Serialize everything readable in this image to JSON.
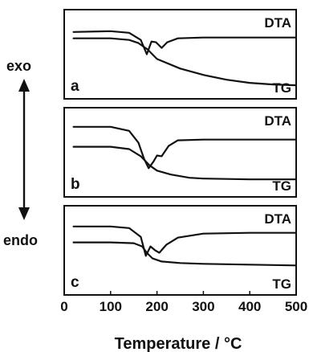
{
  "chart_data": {
    "type": "line",
    "x_unit_label": "Temperature / °C",
    "xlim": [
      0,
      500
    ],
    "x_ticks": [
      0,
      100,
      200,
      300,
      400,
      500
    ],
    "x_tick_labels": [
      "0",
      "100",
      "200",
      "300",
      "400",
      "500"
    ],
    "y_axis_left": {
      "top_label": "exo",
      "bottom_label": "endo"
    },
    "grid": false,
    "ylim": [
      0,
      1
    ],
    "panels": [
      {
        "label": "a",
        "series": [
          {
            "name": "DTA",
            "label_position": "top-right",
            "points": [
              [
                20,
                0.78
              ],
              [
                100,
                0.79
              ],
              [
                140,
                0.77
              ],
              [
                165,
                0.68
              ],
              [
                178,
                0.5
              ],
              [
                188,
                0.66
              ],
              [
                198,
                0.65
              ],
              [
                210,
                0.58
              ],
              [
                222,
                0.65
              ],
              [
                245,
                0.7
              ],
              [
                300,
                0.71
              ],
              [
                400,
                0.71
              ],
              [
                500,
                0.71
              ]
            ]
          },
          {
            "name": "TG",
            "label_position": "bottom-right",
            "points": [
              [
                20,
                0.7
              ],
              [
                100,
                0.7
              ],
              [
                140,
                0.68
              ],
              [
                160,
                0.64
              ],
              [
                180,
                0.56
              ],
              [
                200,
                0.44
              ],
              [
                250,
                0.32
              ],
              [
                300,
                0.24
              ],
              [
                350,
                0.18
              ],
              [
                400,
                0.14
              ],
              [
                450,
                0.12
              ],
              [
                500,
                0.11
              ]
            ]
          }
        ]
      },
      {
        "label": "b",
        "series": [
          {
            "name": "DTA",
            "label_position": "top-right",
            "points": [
              [
                20,
                0.82
              ],
              [
                100,
                0.82
              ],
              [
                140,
                0.77
              ],
              [
                160,
                0.62
              ],
              [
                172,
                0.42
              ],
              [
                182,
                0.3
              ],
              [
                192,
                0.38
              ],
              [
                200,
                0.46
              ],
              [
                210,
                0.45
              ],
              [
                225,
                0.58
              ],
              [
                245,
                0.65
              ],
              [
                300,
                0.66
              ],
              [
                400,
                0.66
              ],
              [
                500,
                0.66
              ]
            ]
          },
          {
            "name": "TG",
            "label_position": "bottom-right",
            "points": [
              [
                20,
                0.57
              ],
              [
                100,
                0.57
              ],
              [
                140,
                0.54
              ],
              [
                165,
                0.45
              ],
              [
                183,
                0.34
              ],
              [
                200,
                0.27
              ],
              [
                230,
                0.22
              ],
              [
                270,
                0.18
              ],
              [
                300,
                0.17
              ],
              [
                400,
                0.16
              ],
              [
                500,
                0.16
              ]
            ]
          }
        ]
      },
      {
        "label": "c",
        "series": [
          {
            "name": "DTA",
            "label_position": "top-right",
            "points": [
              [
                20,
                0.8
              ],
              [
                100,
                0.8
              ],
              [
                140,
                0.78
              ],
              [
                165,
                0.67
              ],
              [
                176,
                0.43
              ],
              [
                186,
                0.55
              ],
              [
                196,
                0.5
              ],
              [
                205,
                0.47
              ],
              [
                220,
                0.57
              ],
              [
                245,
                0.66
              ],
              [
                300,
                0.71
              ],
              [
                400,
                0.72
              ],
              [
                500,
                0.72
              ]
            ]
          },
          {
            "name": "TG",
            "label_position": "bottom-right",
            "points": [
              [
                20,
                0.6
              ],
              [
                100,
                0.6
              ],
              [
                150,
                0.59
              ],
              [
                168,
                0.55
              ],
              [
                178,
                0.47
              ],
              [
                190,
                0.4
              ],
              [
                210,
                0.36
              ],
              [
                250,
                0.34
              ],
              [
                300,
                0.33
              ],
              [
                400,
                0.32
              ],
              [
                500,
                0.31
              ]
            ]
          }
        ]
      }
    ]
  }
}
